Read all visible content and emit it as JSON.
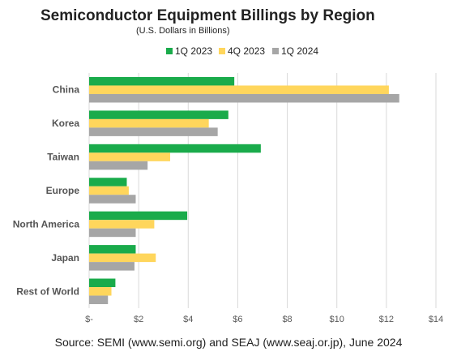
{
  "chart_data": {
    "type": "bar",
    "orientation": "horizontal",
    "title": "Semiconductor Equipment Billings by Region",
    "subtitle": "(U.S. Dollars in Billions)",
    "categories": [
      "China",
      "Korea",
      "Taiwan",
      "Europe",
      "North America",
      "Japan",
      "Rest of World"
    ],
    "series": [
      {
        "name": "1Q 2023",
        "color": "#1aab4b",
        "values": [
          5.86,
          5.62,
          6.93,
          1.52,
          3.96,
          1.88,
          1.06
        ]
      },
      {
        "name": "4Q 2023",
        "color": "#ffd65c",
        "values": [
          12.1,
          4.83,
          3.27,
          1.6,
          2.63,
          2.69,
          0.9
        ]
      },
      {
        "name": "1Q 2024",
        "color": "#a6a6a6",
        "values": [
          12.52,
          5.19,
          2.36,
          1.88,
          1.88,
          1.83,
          0.76
        ]
      }
    ],
    "xlim": [
      0,
      14
    ],
    "xticks": [
      0,
      2,
      4,
      6,
      8,
      10,
      12,
      14
    ],
    "xtick_labels": [
      "$-",
      "$2",
      "$4",
      "$6",
      "$8",
      "$10",
      "$12",
      "$14"
    ],
    "grid": true,
    "legend_position": "top-center",
    "source": "Source: SEMI (www.semi.org) and SEAJ (www.seaj.or.jp), June 2024"
  }
}
